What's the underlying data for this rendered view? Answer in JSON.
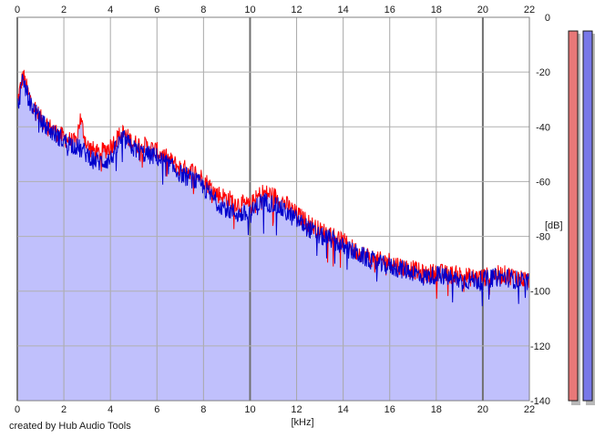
{
  "chart_data": {
    "type": "area",
    "title": "",
    "xlabel": "[kHz]",
    "ylabel": "[dB]",
    "xlim": [
      0,
      22
    ],
    "ylim": [
      -140,
      0
    ],
    "x_ticks": [
      0,
      2,
      4,
      6,
      8,
      10,
      12,
      14,
      16,
      18,
      20,
      22
    ],
    "y_ticks": [
      0,
      -20,
      -40,
      -60,
      -80,
      -100,
      -120,
      -140
    ],
    "y_tick_labels": [
      "0",
      "-20",
      "-40",
      "-60",
      "-80",
      "-100",
      "-120",
      "-140"
    ],
    "grid": true,
    "x_ticks_on_top": true,
    "y_ticks_side": "right",
    "series": [
      {
        "color": "#ff0000",
        "x": [
          0,
          0.25,
          0.5,
          1,
          1.5,
          2,
          2.5,
          2.7,
          3,
          3.5,
          4,
          4.5,
          5,
          5.5,
          6,
          6.5,
          7,
          7.5,
          8,
          8.5,
          9,
          9.5,
          10,
          10.5,
          11,
          11.5,
          12,
          12.5,
          13,
          13.5,
          14,
          14.5,
          15,
          15.5,
          16,
          16.5,
          17,
          17.5,
          18,
          18.5,
          19,
          19.5,
          20,
          20.5,
          21,
          21.5,
          22
        ],
        "y": [
          -31,
          -21,
          -29,
          -37,
          -41,
          -44,
          -46,
          -37,
          -47,
          -50,
          -47,
          -42,
          -46,
          -47,
          -49,
          -52,
          -55,
          -56,
          -59,
          -64,
          -66,
          -68,
          -69,
          -64,
          -65,
          -68,
          -72,
          -75,
          -78,
          -79,
          -82,
          -85,
          -87,
          -89,
          -89,
          -91,
          -92,
          -94,
          -93,
          -94,
          -94,
          -95,
          -95,
          -94,
          -94,
          -95,
          -96
        ]
      },
      {
        "color": "#0000cc",
        "x": [
          0,
          0.25,
          0.5,
          1,
          1.5,
          2,
          2.5,
          3,
          3.5,
          4,
          4.5,
          5,
          5.5,
          6,
          6.5,
          7,
          7.5,
          8,
          8.5,
          9,
          9.5,
          10,
          10.5,
          11,
          11.5,
          12,
          12.5,
          13,
          13.5,
          14,
          14.5,
          15,
          15.5,
          16,
          16.5,
          17,
          17.5,
          18,
          18.5,
          19,
          19.5,
          20,
          20.5,
          21,
          21.5,
          22
        ],
        "y": [
          -33,
          -23,
          -30,
          -38,
          -42,
          -45,
          -47,
          -50,
          -53,
          -52,
          -44,
          -48,
          -50,
          -51,
          -54,
          -57,
          -59,
          -62,
          -67,
          -70,
          -72,
          -72,
          -67,
          -68,
          -71,
          -74,
          -77,
          -80,
          -81,
          -84,
          -86,
          -88,
          -90,
          -91,
          -92,
          -93,
          -95,
          -94,
          -95,
          -96,
          -96,
          -96,
          -95,
          -95,
          -96,
          -97
        ]
      }
    ],
    "level_meters": [
      {
        "channel": "left",
        "color": "#e87878",
        "level_db": -5
      },
      {
        "channel": "right",
        "color": "#7878e8",
        "level_db": -5
      }
    ],
    "fill_color": "#c0c0fc"
  },
  "footer": {
    "credit": "created by Hub Audio Tools"
  }
}
